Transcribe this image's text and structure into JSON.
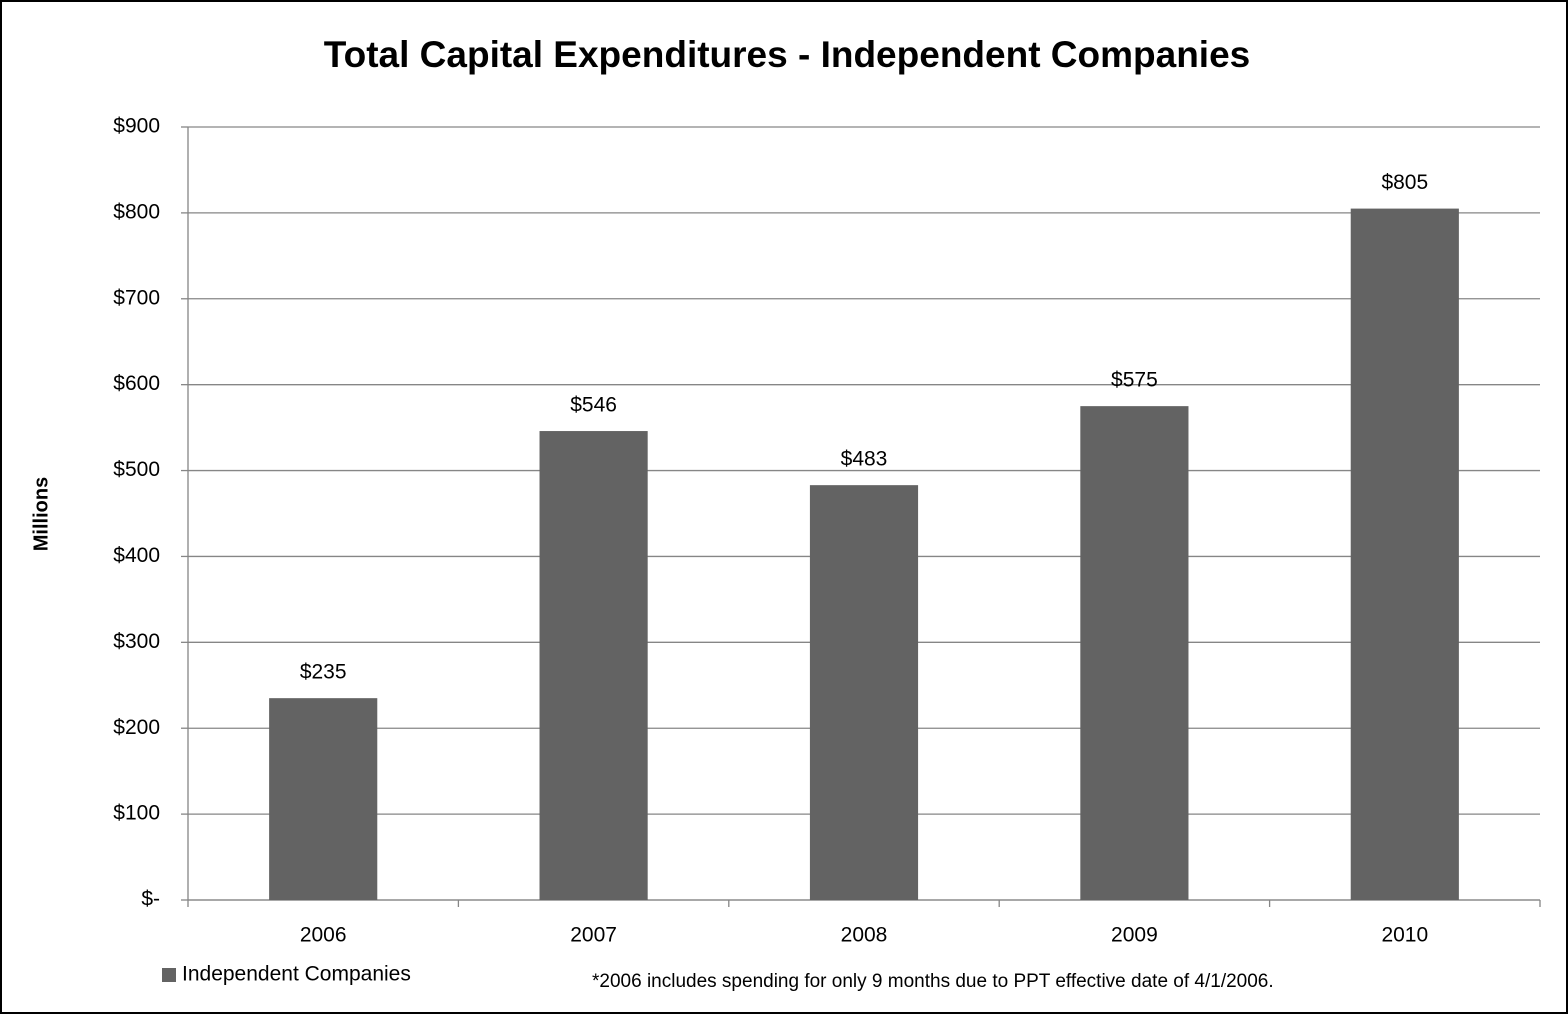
{
  "chart_data": {
    "type": "bar",
    "title": "Total Capital Expenditures - Independent Companies",
    "y_label": "Millions",
    "categories": [
      "2006",
      "2007",
      "2008",
      "2009",
      "2010"
    ],
    "series": [
      {
        "name": "Independent Companies",
        "color": "#636363",
        "values": [
          235,
          546,
          483,
          575,
          805
        ],
        "value_labels": [
          "$235",
          "$546",
          "$483",
          "$575",
          "$805"
        ]
      }
    ],
    "ylim": [
      0,
      900
    ],
    "yticks": [
      {
        "value": 0,
        "label": "$-"
      },
      {
        "value": 100,
        "label": "$100"
      },
      {
        "value": 200,
        "label": "$200"
      },
      {
        "value": 300,
        "label": "$300"
      },
      {
        "value": 400,
        "label": "$400"
      },
      {
        "value": 500,
        "label": "$500"
      },
      {
        "value": 600,
        "label": "$600"
      },
      {
        "value": 700,
        "label": "$700"
      },
      {
        "value": 800,
        "label": "$800"
      },
      {
        "value": 900,
        "label": "$900"
      }
    ],
    "grid": true,
    "legend": "bottom-left",
    "footnote": "*2006 includes spending for only 9 months due to PPT effective date of 4/1/2006."
  }
}
